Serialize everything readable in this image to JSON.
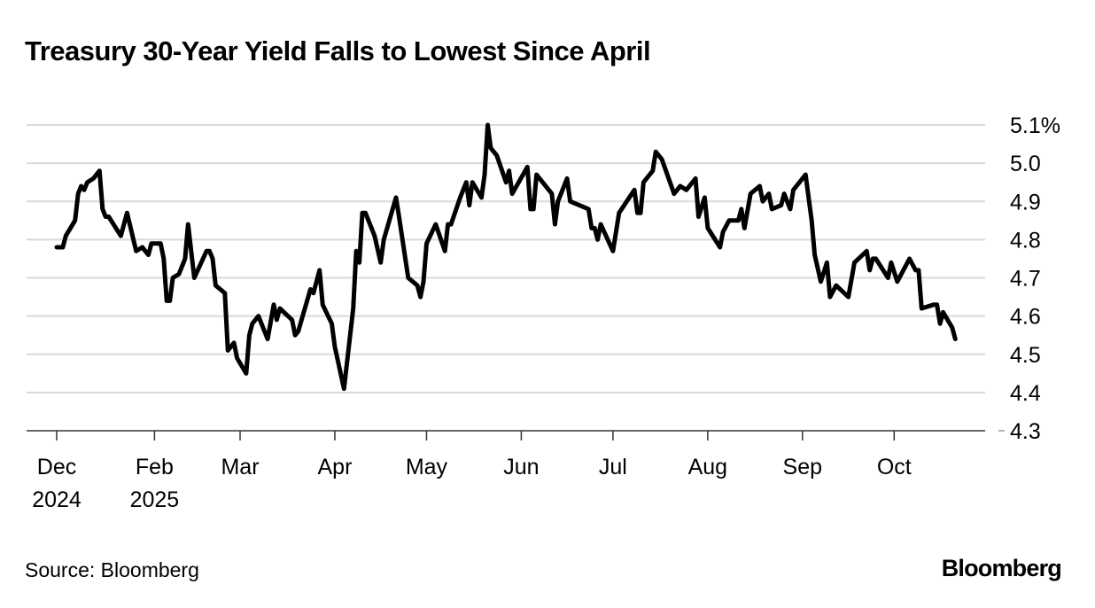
{
  "title": "Treasury 30-Year Yield Falls to Lowest Since April",
  "source": "Source: Bloomberg",
  "logo": "Bloomberg",
  "chart_data": {
    "type": "line",
    "title": "Treasury 30-Year Yield Falls to Lowest Since April",
    "xlabel": "",
    "ylabel": "",
    "ylim": [
      4.3,
      5.1
    ],
    "xlim": [
      "2024-12-31",
      "2025-10-21"
    ],
    "grid": true,
    "y_axis_side": "right",
    "y_ticks": [
      {
        "value": 5.1,
        "label": "5.1%"
      },
      {
        "value": 5.0,
        "label": "5.0"
      },
      {
        "value": 4.9,
        "label": "4.9"
      },
      {
        "value": 4.8,
        "label": "4.8"
      },
      {
        "value": 4.7,
        "label": "4.7"
      },
      {
        "value": 4.6,
        "label": "4.6"
      },
      {
        "value": 4.5,
        "label": "4.5"
      },
      {
        "value": 4.4,
        "label": "4.4"
      },
      {
        "value": 4.3,
        "label": "4.3"
      }
    ],
    "x_ticks": [
      {
        "date": "2024-12-31",
        "label": "Dec",
        "sublabel": "2024"
      },
      {
        "date": "2025-02-01",
        "label": "Feb",
        "sublabel": "2025"
      },
      {
        "date": "2025-03-01",
        "label": "Mar",
        "sublabel": ""
      },
      {
        "date": "2025-04-01",
        "label": "Apr",
        "sublabel": ""
      },
      {
        "date": "2025-05-01",
        "label": "May",
        "sublabel": ""
      },
      {
        "date": "2025-06-01",
        "label": "Jun",
        "sublabel": ""
      },
      {
        "date": "2025-07-01",
        "label": "Jul",
        "sublabel": ""
      },
      {
        "date": "2025-08-01",
        "label": "Aug",
        "sublabel": ""
      },
      {
        "date": "2025-09-01",
        "label": "Sep",
        "sublabel": ""
      },
      {
        "date": "2025-10-01",
        "label": "Oct",
        "sublabel": ""
      }
    ],
    "line_color": "#000000",
    "grid_color": "#d9d9d9",
    "series": [
      {
        "points": [
          [
            "2024-12-31",
            4.78
          ],
          [
            "2025-01-02",
            4.78
          ],
          [
            "2025-01-03",
            4.81
          ],
          [
            "2025-01-06",
            4.85
          ],
          [
            "2025-01-07",
            4.92
          ],
          [
            "2025-01-08",
            4.94
          ],
          [
            "2025-01-09",
            4.93
          ],
          [
            "2025-01-10",
            4.95
          ],
          [
            "2025-01-12",
            4.96
          ],
          [
            "2025-01-14",
            4.98
          ],
          [
            "2025-01-15",
            4.88
          ],
          [
            "2025-01-16",
            4.86
          ],
          [
            "2025-01-17",
            4.86
          ],
          [
            "2025-01-21",
            4.81
          ],
          [
            "2025-01-23",
            4.87
          ],
          [
            "2025-01-26",
            4.77
          ],
          [
            "2025-01-28",
            4.78
          ],
          [
            "2025-01-30",
            4.76
          ],
          [
            "2025-01-31",
            4.79
          ],
          [
            "2025-02-03",
            4.79
          ],
          [
            "2025-02-04",
            4.75
          ],
          [
            "2025-02-05",
            4.64
          ],
          [
            "2025-02-06",
            4.64
          ],
          [
            "2025-02-07",
            4.7
          ],
          [
            "2025-02-09",
            4.71
          ],
          [
            "2025-02-11",
            4.75
          ],
          [
            "2025-02-12",
            4.84
          ],
          [
            "2025-02-14",
            4.7
          ],
          [
            "2025-02-18",
            4.77
          ],
          [
            "2025-02-19",
            4.77
          ],
          [
            "2025-02-20",
            4.75
          ],
          [
            "2025-02-21",
            4.68
          ],
          [
            "2025-02-24",
            4.66
          ],
          [
            "2025-02-25",
            4.51
          ],
          [
            "2025-02-27",
            4.53
          ],
          [
            "2025-02-28",
            4.49
          ],
          [
            "2025-03-03",
            4.45
          ],
          [
            "2025-03-04",
            4.55
          ],
          [
            "2025-03-05",
            4.58
          ],
          [
            "2025-03-07",
            4.6
          ],
          [
            "2025-03-10",
            4.54
          ],
          [
            "2025-03-12",
            4.63
          ],
          [
            "2025-03-13",
            4.59
          ],
          [
            "2025-03-14",
            4.62
          ],
          [
            "2025-03-18",
            4.59
          ],
          [
            "2025-03-19",
            4.55
          ],
          [
            "2025-03-20",
            4.56
          ],
          [
            "2025-03-24",
            4.67
          ],
          [
            "2025-03-25",
            4.66
          ],
          [
            "2025-03-27",
            4.72
          ],
          [
            "2025-03-28",
            4.63
          ],
          [
            "2025-03-31",
            4.58
          ],
          [
            "2025-04-01",
            4.52
          ],
          [
            "2025-04-04",
            4.41
          ],
          [
            "2025-04-07",
            4.62
          ],
          [
            "2025-04-08",
            4.77
          ],
          [
            "2025-04-09",
            4.74
          ],
          [
            "2025-04-10",
            4.87
          ],
          [
            "2025-04-11",
            4.87
          ],
          [
            "2025-04-14",
            4.81
          ],
          [
            "2025-04-16",
            4.74
          ],
          [
            "2025-04-17",
            4.8
          ],
          [
            "2025-04-21",
            4.91
          ],
          [
            "2025-04-22",
            4.86
          ],
          [
            "2025-04-25",
            4.7
          ],
          [
            "2025-04-28",
            4.68
          ],
          [
            "2025-04-29",
            4.65
          ],
          [
            "2025-04-30",
            4.69
          ],
          [
            "2025-05-01",
            4.79
          ],
          [
            "2025-05-04",
            4.84
          ],
          [
            "2025-05-07",
            4.77
          ],
          [
            "2025-05-08",
            4.84
          ],
          [
            "2025-05-09",
            4.84
          ],
          [
            "2025-05-12",
            4.91
          ],
          [
            "2025-05-14",
            4.95
          ],
          [
            "2025-05-15",
            4.89
          ],
          [
            "2025-05-16",
            4.95
          ],
          [
            "2025-05-19",
            4.91
          ],
          [
            "2025-05-20",
            4.97
          ],
          [
            "2025-05-21",
            5.1
          ],
          [
            "2025-05-22",
            5.04
          ],
          [
            "2025-05-24",
            5.02
          ],
          [
            "2025-05-27",
            4.95
          ],
          [
            "2025-05-28",
            4.98
          ],
          [
            "2025-05-29",
            4.92
          ],
          [
            "2025-06-03",
            4.99
          ],
          [
            "2025-06-04",
            4.88
          ],
          [
            "2025-06-05",
            4.88
          ],
          [
            "2025-06-06",
            4.97
          ],
          [
            "2025-06-11",
            4.92
          ],
          [
            "2025-06-12",
            4.84
          ],
          [
            "2025-06-13",
            4.9
          ],
          [
            "2025-06-16",
            4.96
          ],
          [
            "2025-06-17",
            4.9
          ],
          [
            "2025-06-20",
            4.89
          ],
          [
            "2025-06-23",
            4.88
          ],
          [
            "2025-06-24",
            4.83
          ],
          [
            "2025-06-25",
            4.83
          ],
          [
            "2025-06-26",
            4.8
          ],
          [
            "2025-06-27",
            4.84
          ],
          [
            "2025-07-01",
            4.77
          ],
          [
            "2025-07-03",
            4.87
          ],
          [
            "2025-07-08",
            4.93
          ],
          [
            "2025-07-09",
            4.87
          ],
          [
            "2025-07-10",
            4.87
          ],
          [
            "2025-07-11",
            4.95
          ],
          [
            "2025-07-14",
            4.98
          ],
          [
            "2025-07-15",
            5.03
          ],
          [
            "2025-07-17",
            5.01
          ],
          [
            "2025-07-21",
            4.92
          ],
          [
            "2025-07-23",
            4.94
          ],
          [
            "2025-07-25",
            4.93
          ],
          [
            "2025-07-28",
            4.96
          ],
          [
            "2025-07-29",
            4.86
          ],
          [
            "2025-07-31",
            4.91
          ],
          [
            "2025-08-01",
            4.83
          ],
          [
            "2025-08-05",
            4.78
          ],
          [
            "2025-08-06",
            4.82
          ],
          [
            "2025-08-08",
            4.85
          ],
          [
            "2025-08-11",
            4.85
          ],
          [
            "2025-08-12",
            4.88
          ],
          [
            "2025-08-13",
            4.83
          ],
          [
            "2025-08-15",
            4.92
          ],
          [
            "2025-08-18",
            4.94
          ],
          [
            "2025-08-19",
            4.9
          ],
          [
            "2025-08-21",
            4.92
          ],
          [
            "2025-08-22",
            4.88
          ],
          [
            "2025-08-25",
            4.89
          ],
          [
            "2025-08-26",
            4.92
          ],
          [
            "2025-08-28",
            4.88
          ],
          [
            "2025-08-29",
            4.93
          ],
          [
            "2025-09-02",
            4.97
          ],
          [
            "2025-09-04",
            4.85
          ],
          [
            "2025-09-05",
            4.76
          ],
          [
            "2025-09-07",
            4.69
          ],
          [
            "2025-09-09",
            4.74
          ],
          [
            "2025-09-10",
            4.65
          ],
          [
            "2025-09-12",
            4.68
          ],
          [
            "2025-09-16",
            4.65
          ],
          [
            "2025-09-18",
            4.74
          ],
          [
            "2025-09-22",
            4.77
          ],
          [
            "2025-09-23",
            4.72
          ],
          [
            "2025-09-24",
            4.75
          ],
          [
            "2025-09-25",
            4.75
          ],
          [
            "2025-09-29",
            4.7
          ],
          [
            "2025-09-30",
            4.74
          ],
          [
            "2025-10-02",
            4.69
          ],
          [
            "2025-10-06",
            4.75
          ],
          [
            "2025-10-08",
            4.72
          ],
          [
            "2025-10-09",
            4.72
          ],
          [
            "2025-10-10",
            4.62
          ],
          [
            "2025-10-14",
            4.63
          ],
          [
            "2025-10-15",
            4.63
          ],
          [
            "2025-10-16",
            4.58
          ],
          [
            "2025-10-17",
            4.61
          ],
          [
            "2025-10-20",
            4.57
          ],
          [
            "2025-10-21",
            4.54
          ]
        ]
      }
    ]
  }
}
